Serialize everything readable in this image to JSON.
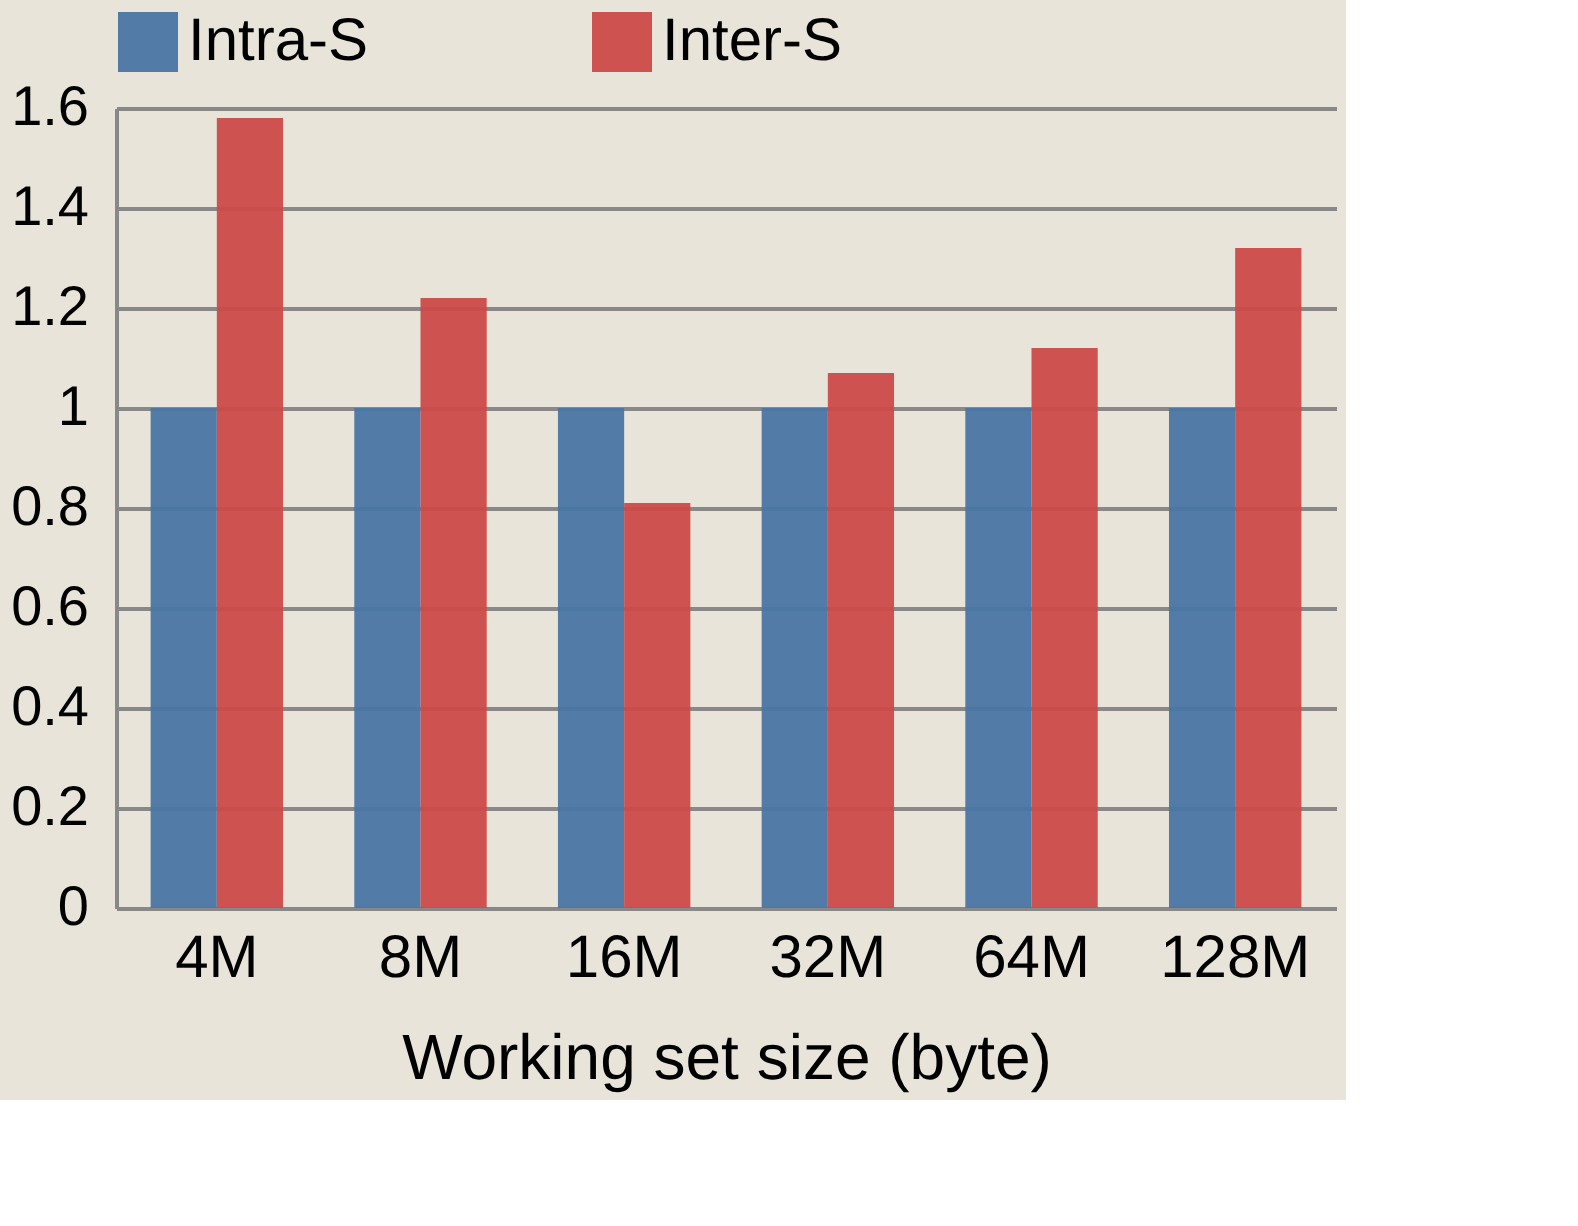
{
  "chart_data": {
    "type": "bar",
    "xlabel": "Working set size (byte)",
    "categories": [
      "4M",
      "8M",
      "16M",
      "32M",
      "64M",
      "128M"
    ],
    "series": [
      {
        "name": "Intra-S",
        "color": "#4a76a4",
        "values": [
          1,
          1,
          1,
          1,
          1,
          1
        ]
      },
      {
        "name": "Inter-S",
        "color": "#cc4a48",
        "values": [
          1.58,
          1.22,
          0.81,
          1.07,
          1.12,
          1.32
        ]
      }
    ],
    "ylim": [
      0,
      1.6
    ],
    "yticks": [
      0,
      0.2,
      0.4,
      0.6,
      0.8,
      1,
      1.2,
      1.4,
      1.6
    ],
    "grid": "y",
    "legend": "top"
  }
}
